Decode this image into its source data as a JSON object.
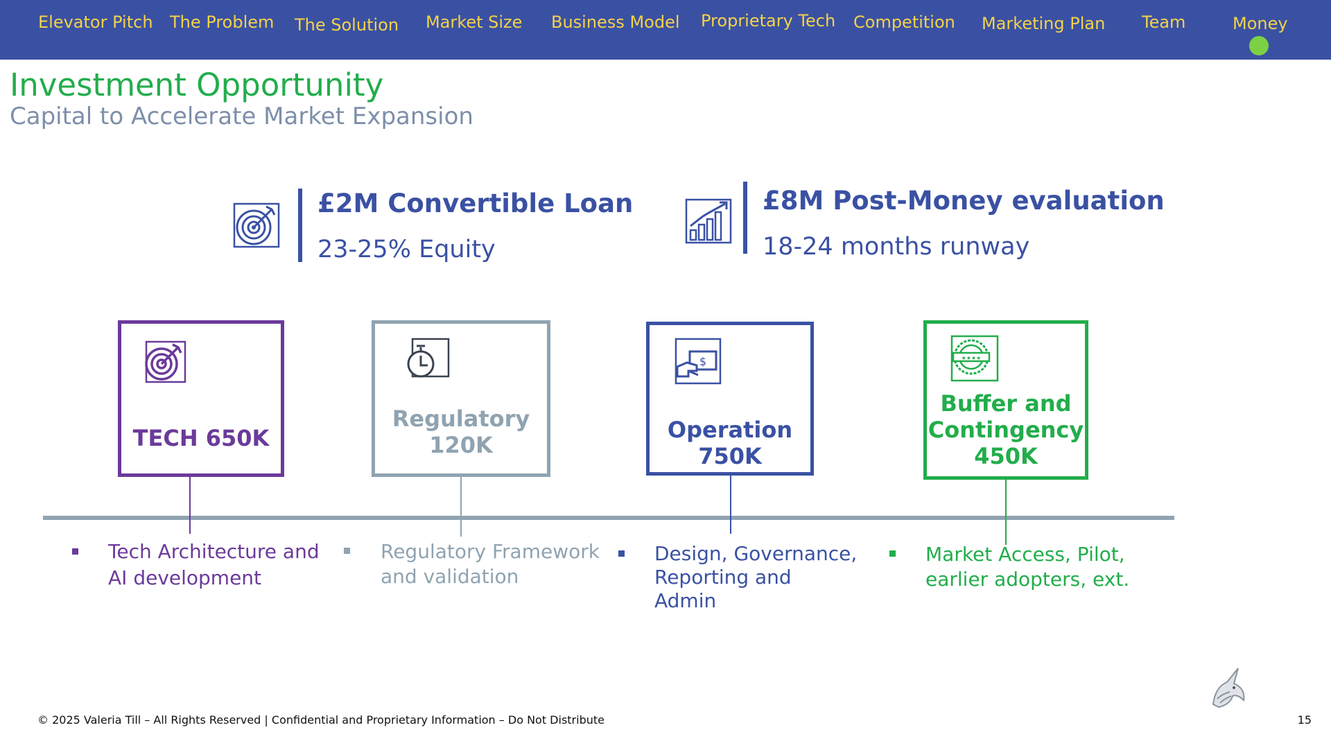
{
  "nav": {
    "items": [
      "Elevator Pitch",
      "The Problem",
      "The Solution",
      "Market Size",
      "Business Model",
      "Proprietary Tech",
      "Competition",
      "Marketing Plan",
      "Team",
      "Money"
    ],
    "active": "Money"
  },
  "header": {
    "title": "Investment Opportunity",
    "subtitle": "Capital to Accelerate Market Expansion"
  },
  "highlights": [
    {
      "headline": "£2M Convertible Loan",
      "detail": "23-25% Equity",
      "icon": "target-icon"
    },
    {
      "headline": "£8M Post-Money evaluation",
      "detail": "18-24 months runway",
      "icon": "growth-chart-icon"
    }
  ],
  "allocations": [
    {
      "lines": [
        "TECH 650K"
      ],
      "description": [
        "Tech Architecture and",
        "AI development"
      ],
      "icon": "target-icon",
      "color": "#6b3a9a"
    },
    {
      "lines": [
        "Regulatory",
        "120K"
      ],
      "description": [
        "Regulatory Framework",
        "and validation"
      ],
      "icon": "stopwatch-icon",
      "color": "#8fa3b1"
    },
    {
      "lines": [
        "Operation",
        "750K"
      ],
      "description": [
        "Design, Governance,",
        "Reporting and",
        "Admin"
      ],
      "icon": "payment-icon",
      "color": "#3a51a3"
    },
    {
      "lines": [
        "Buffer and",
        "Contingency",
        "450K"
      ],
      "description": [
        "Market Access, Pilot,",
        "earlier adopters, ext."
      ],
      "icon": "quality-seal-icon",
      "color": "#22ad4b"
    }
  ],
  "footer": {
    "copyright": "© 2025 Valeria Till – All Rights Reserved | Confidential and Proprietary Information – Do Not Distribute",
    "page": "15"
  },
  "colors": {
    "nav_bg": "#3a51a3",
    "nav_text": "#f4d24a",
    "active_dot": "#7bd143",
    "title": "#22ad4b",
    "subtitle": "#7d8fa9"
  }
}
